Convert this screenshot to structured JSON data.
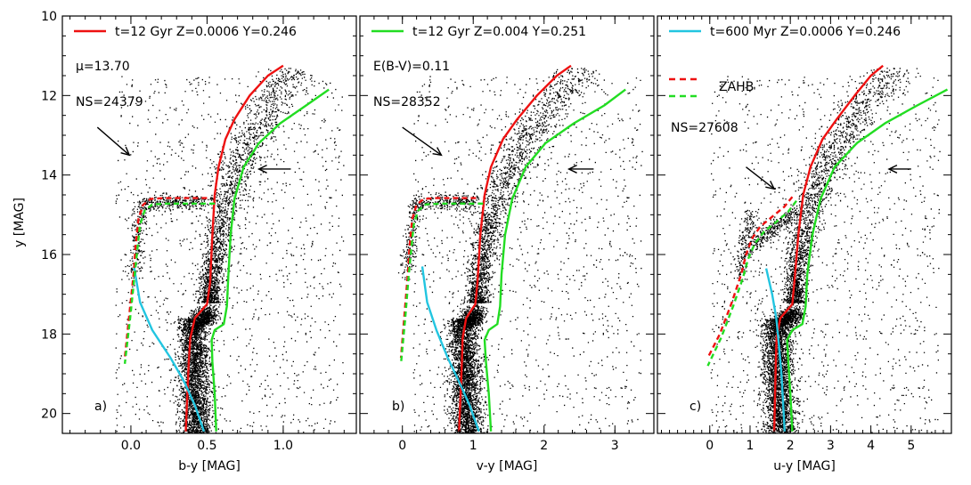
{
  "figure": {
    "ylabel": "y [MAG]",
    "ylim": [
      10,
      20.5
    ],
    "yticks": [
      10,
      12,
      14,
      16,
      18,
      20
    ]
  },
  "chart_data": [
    {
      "type": "scatter",
      "panel_label": "a)",
      "xlabel": "b-y [MAG]",
      "xlim": [
        -0.45,
        1.48
      ],
      "xticks": [
        0.0,
        0.5,
        1.0
      ],
      "xticklabels": [
        "0.0",
        "0.5",
        "1.0"
      ],
      "legend": [
        {
          "label": "t=12 Gyr Z=0.0006 Y=0.246",
          "color": "#ee1111",
          "style": "solid"
        }
      ],
      "annotations": [
        "μ=13.70",
        "NS=24379"
      ],
      "arrows": [
        {
          "kind": "diagonal",
          "x1": -0.22,
          "y1": 12.8,
          "x2": -0.01,
          "y2": 13.5
        },
        {
          "kind": "left",
          "x1": 1.05,
          "y1": 13.85,
          "x2": 0.84,
          "y2": 13.85
        }
      ],
      "cloud": {
        "ms_x": 0.4,
        "turnoff_y": 17.75,
        "sgb_x": [
          0.4,
          0.53
        ],
        "sgb_y": 17.45,
        "rgb_base_x": 0.52,
        "rgb_base_y": 17.2,
        "rgb_tip_x": 1.0,
        "rgb_tip_y": 11.3,
        "hb_y": 14.65,
        "hb_x_red": 0.5,
        "hb_x_blue": 0.07,
        "bhb_end_x": 0.02,
        "bhb_end_y": 16.5
      },
      "series": [
        {
          "name": "12 Gyr red",
          "color": "#ee1111",
          "style": "solid",
          "points": [
            [
              0.36,
              20.45
            ],
            [
              0.37,
              19.6
            ],
            [
              0.38,
              18.7
            ],
            [
              0.39,
              18.1
            ],
            [
              0.42,
              17.6
            ],
            [
              0.5,
              17.25
            ],
            [
              0.52,
              16.7
            ],
            [
              0.535,
              15.5
            ],
            [
              0.55,
              14.5
            ],
            [
              0.575,
              13.8
            ],
            [
              0.62,
              13.1
            ],
            [
              0.68,
              12.6
            ],
            [
              0.78,
              12.0
            ],
            [
              0.9,
              11.5
            ],
            [
              1.0,
              11.25
            ]
          ]
        },
        {
          "name": "12 Gyr green",
          "color": "#22dd22",
          "style": "solid",
          "points": [
            [
              0.56,
              20.45
            ],
            [
              0.55,
              19.5
            ],
            [
              0.535,
              18.7
            ],
            [
              0.53,
              18.15
            ],
            [
              0.55,
              17.9
            ],
            [
              0.61,
              17.75
            ],
            [
              0.63,
              17.3
            ],
            [
              0.64,
              16.5
            ],
            [
              0.655,
              15.5
            ],
            [
              0.68,
              14.6
            ],
            [
              0.74,
              13.8
            ],
            [
              0.84,
              13.2
            ],
            [
              0.98,
              12.7
            ],
            [
              1.15,
              12.25
            ],
            [
              1.3,
              11.85
            ]
          ]
        },
        {
          "name": "600 Myr",
          "color": "#22c5e0",
          "style": "solid",
          "points": [
            [
              0.02,
              16.3
            ],
            [
              0.06,
              17.2
            ],
            [
              0.14,
              17.9
            ],
            [
              0.26,
              18.6
            ],
            [
              0.35,
              19.2
            ],
            [
              0.42,
              19.8
            ],
            [
              0.48,
              20.45
            ]
          ]
        },
        {
          "name": "ZAHB red",
          "color": "#ee1111",
          "style": "dashed",
          "points": [
            [
              0.5,
              14.58
            ],
            [
              0.35,
              14.58
            ],
            [
              0.22,
              14.58
            ],
            [
              0.13,
              14.6
            ],
            [
              0.08,
              14.75
            ],
            [
              0.05,
              15.1
            ],
            [
              0.03,
              15.8
            ],
            [
              0.02,
              16.4
            ],
            [
              -0.01,
              17.5
            ],
            [
              -0.04,
              18.6
            ]
          ]
        },
        {
          "name": "ZAHB green",
          "color": "#22dd22",
          "style": "dashed",
          "points": [
            [
              0.55,
              14.72
            ],
            [
              0.4,
              14.72
            ],
            [
              0.24,
              14.72
            ],
            [
              0.14,
              14.74
            ],
            [
              0.09,
              14.9
            ],
            [
              0.06,
              15.25
            ],
            [
              0.04,
              15.95
            ],
            [
              0.025,
              16.5
            ],
            [
              -0.005,
              17.6
            ],
            [
              -0.04,
              18.75
            ]
          ]
        }
      ]
    },
    {
      "type": "scatter",
      "panel_label": "b)",
      "xlabel": "v-y [MAG]",
      "xlim": [
        -0.6,
        3.55
      ],
      "xticks": [
        0,
        1,
        2,
        3
      ],
      "xticklabels": [
        "0",
        "1",
        "2",
        "3"
      ],
      "legend": [
        {
          "label": "t=12 Gyr Z=0.004 Y=0.251",
          "color": "#22dd22",
          "style": "solid"
        }
      ],
      "annotations": [
        "E(B-V)=0.11",
        "NS=28352"
      ],
      "arrows": [
        {
          "kind": "diagonal",
          "x1": 0.0,
          "y1": 12.8,
          "x2": 0.55,
          "y2": 13.5
        },
        {
          "kind": "left",
          "x1": 2.7,
          "y1": 13.85,
          "x2": 2.35,
          "y2": 13.85
        }
      ],
      "cloud": {
        "ms_x": 0.85,
        "turnoff_y": 17.75,
        "sgb_x": [
          0.85,
          1.08
        ],
        "sgb_y": 17.45,
        "rgb_base_x": 1.06,
        "rgb_base_y": 17.2,
        "rgb_tip_x": 2.4,
        "rgb_tip_y": 11.3,
        "hb_y": 14.65,
        "hb_x_red": 1.05,
        "hb_x_blue": 0.18,
        "bhb_end_x": 0.05,
        "bhb_end_y": 16.5
      },
      "series": [
        {
          "name": "12 Gyr red",
          "color": "#ee1111",
          "style": "solid",
          "points": [
            [
              0.8,
              20.45
            ],
            [
              0.82,
              19.6
            ],
            [
              0.84,
              18.7
            ],
            [
              0.85,
              18.1
            ],
            [
              0.9,
              17.6
            ],
            [
              1.03,
              17.25
            ],
            [
              1.06,
              16.7
            ],
            [
              1.1,
              15.5
            ],
            [
              1.16,
              14.5
            ],
            [
              1.25,
              13.8
            ],
            [
              1.42,
              13.1
            ],
            [
              1.62,
              12.6
            ],
            [
              1.9,
              12.0
            ],
            [
              2.18,
              11.5
            ],
            [
              2.38,
              11.25
            ]
          ]
        },
        {
          "name": "12 Gyr green",
          "color": "#22dd22",
          "style": "solid",
          "points": [
            [
              1.25,
              20.45
            ],
            [
              1.22,
              19.5
            ],
            [
              1.18,
              18.7
            ],
            [
              1.16,
              18.15
            ],
            [
              1.22,
              17.9
            ],
            [
              1.34,
              17.75
            ],
            [
              1.38,
              17.3
            ],
            [
              1.4,
              16.5
            ],
            [
              1.45,
              15.5
            ],
            [
              1.55,
              14.6
            ],
            [
              1.74,
              13.8
            ],
            [
              2.02,
              13.2
            ],
            [
              2.42,
              12.7
            ],
            [
              2.85,
              12.25
            ],
            [
              3.15,
              11.85
            ]
          ]
        },
        {
          "name": "600 Myr",
          "color": "#22c5e0",
          "style": "solid",
          "points": [
            [
              0.28,
              16.3
            ],
            [
              0.35,
              17.2
            ],
            [
              0.48,
              17.9
            ],
            [
              0.64,
              18.6
            ],
            [
              0.8,
              19.2
            ],
            [
              0.95,
              19.8
            ],
            [
              1.08,
              20.45
            ]
          ]
        },
        {
          "name": "ZAHB red",
          "color": "#ee1111",
          "style": "dashed",
          "points": [
            [
              1.04,
              14.58
            ],
            [
              0.75,
              14.58
            ],
            [
              0.48,
              14.58
            ],
            [
              0.3,
              14.6
            ],
            [
              0.2,
              14.75
            ],
            [
              0.14,
              15.1
            ],
            [
              0.1,
              15.8
            ],
            [
              0.08,
              16.4
            ],
            [
              0.03,
              17.5
            ],
            [
              -0.02,
              18.6
            ]
          ]
        },
        {
          "name": "ZAHB green",
          "color": "#22dd22",
          "style": "dashed",
          "points": [
            [
              1.14,
              14.72
            ],
            [
              0.85,
              14.72
            ],
            [
              0.55,
              14.72
            ],
            [
              0.33,
              14.74
            ],
            [
              0.22,
              14.9
            ],
            [
              0.16,
              15.25
            ],
            [
              0.12,
              15.95
            ],
            [
              0.09,
              16.5
            ],
            [
              0.04,
              17.6
            ],
            [
              -0.02,
              18.75
            ]
          ]
        }
      ]
    },
    {
      "type": "scatter",
      "panel_label": "c)",
      "xlabel": "u-y [MAG]",
      "xlim": [
        -1.3,
        6.0
      ],
      "xticks": [
        0,
        1,
        2,
        3,
        4,
        5
      ],
      "xticklabels": [
        "0",
        "1",
        "2",
        "3",
        "4",
        "5"
      ],
      "legend": [
        {
          "label": "t=600 Myr Z=0.0006 Y=0.246",
          "color": "#22c5e0",
          "style": "solid"
        },
        {
          "label": "",
          "color": "#ee1111",
          "style": "dashed"
        },
        {
          "label": "ZAHB",
          "color": "#22dd22",
          "style": "dashed"
        }
      ],
      "annotations": [
        "NS=27608"
      ],
      "arrows": [
        {
          "kind": "diagonal",
          "x1": 0.9,
          "y1": 13.8,
          "x2": 1.6,
          "y2": 14.35
        },
        {
          "kind": "left",
          "x1": 5.0,
          "y1": 13.85,
          "x2": 4.45,
          "y2": 13.85
        }
      ],
      "cloud": {
        "ms_x": 1.65,
        "turnoff_y": 17.75,
        "sgb_x": [
          1.65,
          2.15
        ],
        "sgb_y": 17.45,
        "rgb_base_x": 2.1,
        "rgb_base_y": 17.2,
        "rgb_tip_x": 4.3,
        "rgb_tip_y": 11.3,
        "hb_y": 14.9,
        "hb_x_red": 2.1,
        "hb_x_blue": 1.0,
        "bhb_end_x": 0.75,
        "bhb_end_y": 16.6
      },
      "series": [
        {
          "name": "12 Gyr red",
          "color": "#ee1111",
          "style": "solid",
          "points": [
            [
              1.6,
              20.45
            ],
            [
              1.62,
              19.6
            ],
            [
              1.64,
              18.7
            ],
            [
              1.66,
              18.1
            ],
            [
              1.75,
              17.6
            ],
            [
              2.05,
              17.25
            ],
            [
              2.1,
              16.7
            ],
            [
              2.2,
              15.5
            ],
            [
              2.32,
              14.5
            ],
            [
              2.5,
              13.8
            ],
            [
              2.8,
              13.1
            ],
            [
              3.15,
              12.6
            ],
            [
              3.6,
              12.0
            ],
            [
              4.0,
              11.5
            ],
            [
              4.3,
              11.25
            ]
          ]
        },
        {
          "name": "12 Gyr green",
          "color": "#22dd22",
          "style": "solid",
          "points": [
            [
              2.05,
              20.45
            ],
            [
              2.0,
              19.5
            ],
            [
              1.95,
              18.7
            ],
            [
              1.92,
              18.15
            ],
            [
              2.05,
              17.9
            ],
            [
              2.3,
              17.75
            ],
            [
              2.38,
              17.3
            ],
            [
              2.42,
              16.5
            ],
            [
              2.55,
              15.5
            ],
            [
              2.75,
              14.6
            ],
            [
              3.1,
              13.8
            ],
            [
              3.65,
              13.2
            ],
            [
              4.35,
              12.7
            ],
            [
              5.15,
              12.25
            ],
            [
              5.9,
              11.85
            ]
          ]
        },
        {
          "name": "600 Myr",
          "color": "#22c5e0",
          "style": "solid",
          "points": [
            [
              1.4,
              16.35
            ],
            [
              1.55,
              17.0
            ],
            [
              1.65,
              17.6
            ],
            [
              1.72,
              18.3
            ],
            [
              1.78,
              19.0
            ],
            [
              1.82,
              19.7
            ],
            [
              1.86,
              20.45
            ]
          ]
        },
        {
          "name": "ZAHB red",
          "color": "#ee1111",
          "style": "dashed",
          "points": [
            [
              2.05,
              14.55
            ],
            [
              1.85,
              14.8
            ],
            [
              1.55,
              15.05
            ],
            [
              1.25,
              15.3
            ],
            [
              1.05,
              15.6
            ],
            [
              0.9,
              16.0
            ],
            [
              0.78,
              16.5
            ],
            [
              0.55,
              17.2
            ],
            [
              0.25,
              18.0
            ],
            [
              -0.05,
              18.6
            ]
          ]
        },
        {
          "name": "ZAHB green",
          "color": "#22dd22",
          "style": "dashed",
          "points": [
            [
              2.15,
              14.65
            ],
            [
              1.95,
              14.92
            ],
            [
              1.65,
              15.18
            ],
            [
              1.35,
              15.42
            ],
            [
              1.12,
              15.72
            ],
            [
              0.95,
              16.12
            ],
            [
              0.82,
              16.6
            ],
            [
              0.58,
              17.3
            ],
            [
              0.28,
              18.1
            ],
            [
              -0.05,
              18.8
            ]
          ]
        }
      ]
    }
  ]
}
